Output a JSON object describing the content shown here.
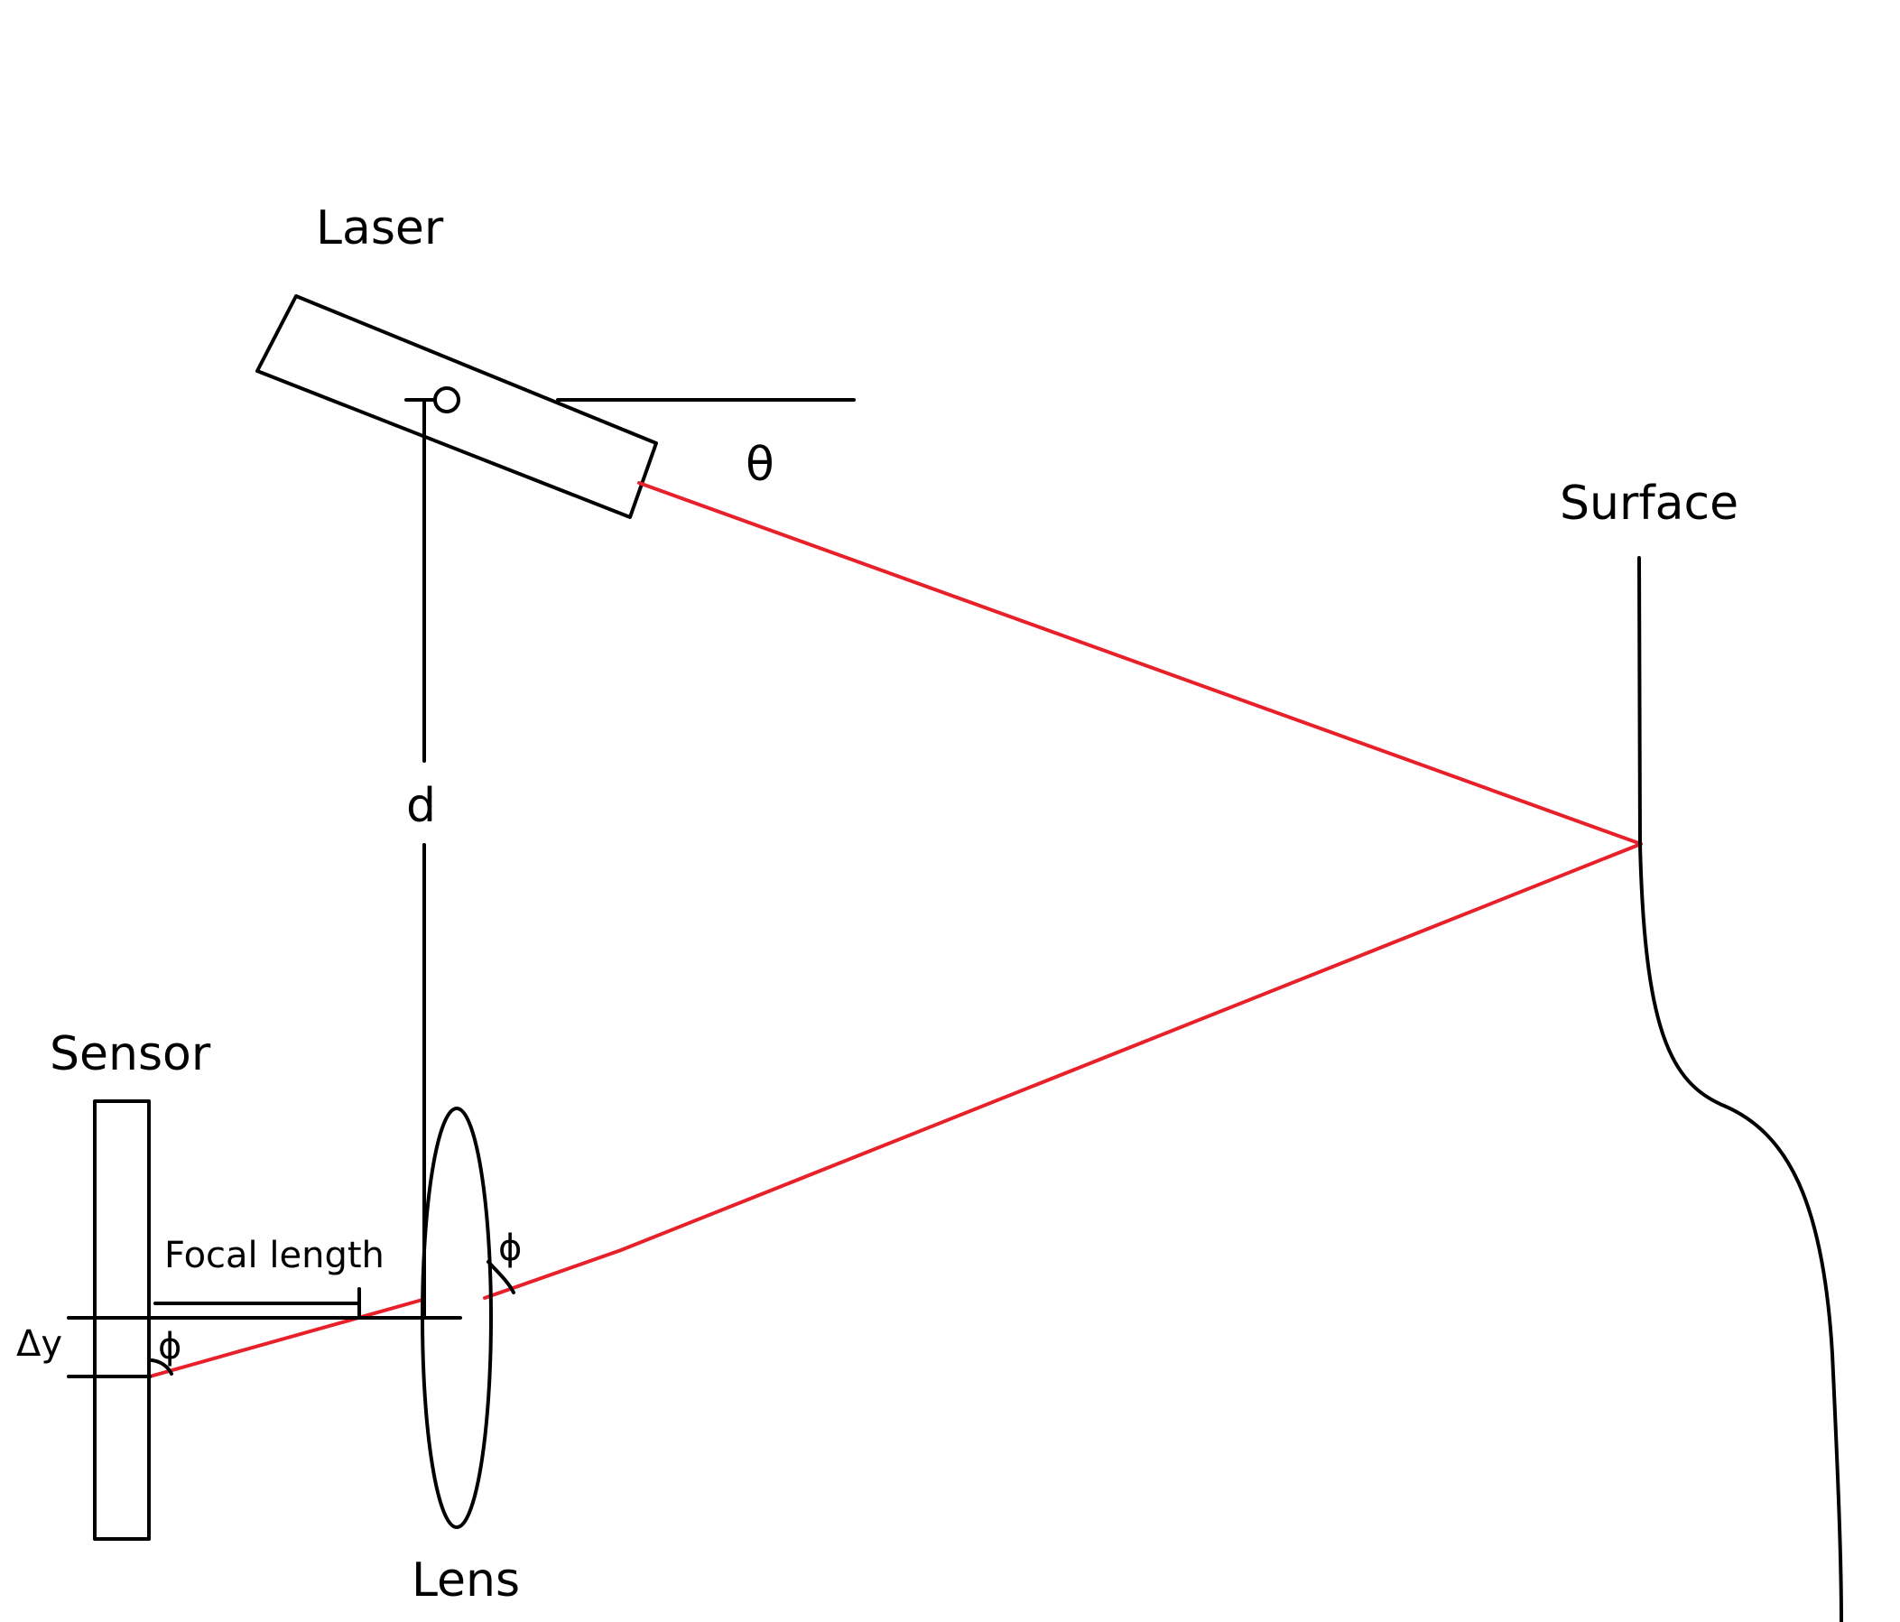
{
  "labels": {
    "laser": "Laser",
    "theta": "θ",
    "surface": "Surface",
    "distance": "d",
    "sensor": "Sensor",
    "focal_length": "Focal length",
    "phi_lens": "ϕ",
    "phi_sensor": "ϕ",
    "delta_y": "Δy",
    "lens": "Lens"
  },
  "colors": {
    "ink": "#000000",
    "beam": "#e8202a",
    "background": "#ffffff"
  }
}
